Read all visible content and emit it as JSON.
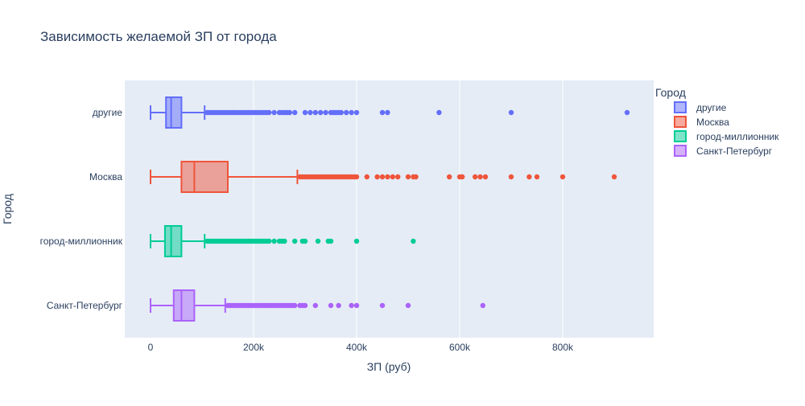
{
  "chart_data": {
    "type": "box",
    "orientation": "horizontal",
    "title": "Зависимость желаемой ЗП от города",
    "xlabel": "ЗП (руб)",
    "ylabel": "Город",
    "xlim": [
      -45000,
      970000
    ],
    "xticks": [
      0,
      200000,
      400000,
      600000,
      800000
    ],
    "xtick_labels": [
      "0",
      "200k",
      "400k",
      "600k",
      "800k"
    ],
    "categories": [
      "другие",
      "Москва",
      "город-миллионник",
      "Санкт-Петербург"
    ],
    "legend": {
      "title": "Город",
      "placement": "top-right"
    },
    "grid": true,
    "series": [
      {
        "name": "другие",
        "color": "#636efa",
        "fill": "rgba(99,110,250,0.5)",
        "min": 0,
        "q1": 30000,
        "median": 40000,
        "q3": 60000,
        "upper_fence": 105000,
        "outliers": [
          110000,
          115000,
          120000,
          125000,
          130000,
          135000,
          140000,
          145000,
          150000,
          155000,
          160000,
          165000,
          170000,
          175000,
          180000,
          185000,
          190000,
          195000,
          200000,
          205000,
          210000,
          215000,
          220000,
          225000,
          230000,
          240000,
          250000,
          255000,
          260000,
          265000,
          270000,
          280000,
          300000,
          310000,
          320000,
          330000,
          340000,
          350000,
          355000,
          360000,
          365000,
          370000,
          380000,
          390000,
          400000,
          450000,
          460000,
          560000,
          700000,
          925000
        ]
      },
      {
        "name": "Москва",
        "color": "#ef553b",
        "fill": "rgba(239,85,59,0.5)",
        "min": 0,
        "q1": 60000,
        "median": 85000,
        "q3": 150000,
        "upper_fence": 285000,
        "outliers": [
          290000,
          295000,
          300000,
          305000,
          310000,
          315000,
          320000,
          325000,
          330000,
          335000,
          340000,
          345000,
          350000,
          355000,
          360000,
          365000,
          370000,
          375000,
          380000,
          385000,
          390000,
          395000,
          400000,
          420000,
          440000,
          450000,
          460000,
          470000,
          480000,
          500000,
          510000,
          515000,
          580000,
          600000,
          605000,
          630000,
          640000,
          650000,
          700000,
          735000,
          750000,
          800000,
          900000
        ]
      },
      {
        "name": "город-миллионник",
        "color": "#00cc96",
        "fill": "rgba(0,204,150,0.5)",
        "min": 0,
        "q1": 28000,
        "median": 40000,
        "q3": 60000,
        "upper_fence": 105000,
        "outliers": [
          110000,
          115000,
          120000,
          125000,
          130000,
          135000,
          140000,
          145000,
          150000,
          155000,
          160000,
          165000,
          170000,
          175000,
          180000,
          185000,
          190000,
          195000,
          200000,
          205000,
          210000,
          215000,
          220000,
          225000,
          230000,
          240000,
          250000,
          255000,
          260000,
          280000,
          295000,
          300000,
          325000,
          345000,
          350000,
          400000,
          510000
        ]
      },
      {
        "name": "Санкт-Петербург",
        "color": "#ab63fa",
        "fill": "rgba(171,99,250,0.5)",
        "min": 0,
        "q1": 45000,
        "median": 60000,
        "q3": 85000,
        "upper_fence": 145000,
        "outliers": [
          150000,
          155000,
          160000,
          165000,
          170000,
          175000,
          180000,
          185000,
          190000,
          195000,
          200000,
          205000,
          210000,
          215000,
          220000,
          225000,
          230000,
          235000,
          240000,
          245000,
          250000,
          255000,
          260000,
          265000,
          270000,
          275000,
          280000,
          290000,
          295000,
          300000,
          320000,
          350000,
          365000,
          390000,
          400000,
          450000,
          500000,
          645000
        ]
      }
    ]
  }
}
